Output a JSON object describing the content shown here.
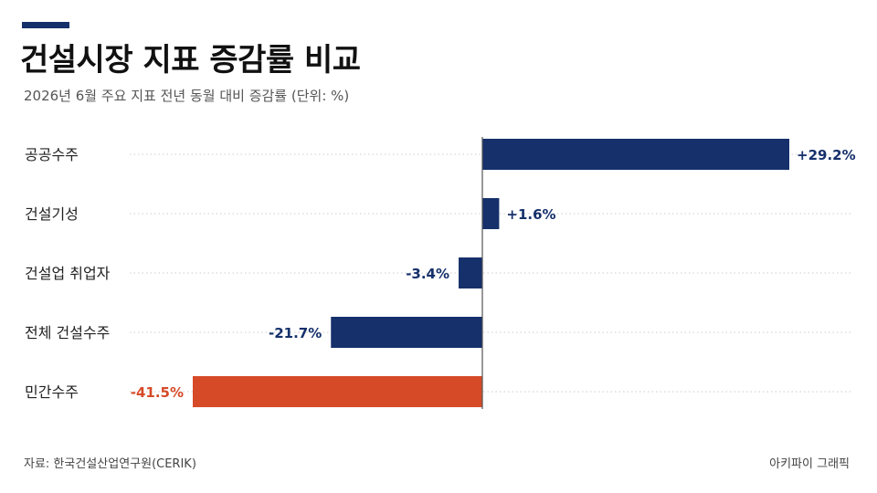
{
  "header": {
    "title": "건설시장 지표 증감률 비교",
    "subtitle": "2026년 6월 주요 지표 전년 동월 대비 증감률 (단위: %)"
  },
  "footer": {
    "source": "자료: 한국건설산업연구원(CERIK)",
    "credit": "아키파이 그래픽"
  },
  "colors": {
    "accent": "#15306b",
    "bar_default": "#15306b",
    "bar_highlight": "#d64a28",
    "label_default": "#15306b",
    "label_highlight": "#d64a28",
    "gridline": "#cccccc",
    "axis": "#555555"
  },
  "chart_data": {
    "type": "bar",
    "orientation": "horizontal",
    "categories": [
      "공공수주",
      "건설기성",
      "건설업 취업자",
      "전체 건설수주",
      "민간수주"
    ],
    "values": [
      29.2,
      1.6,
      -3.4,
      -21.7,
      -41.5
    ],
    "value_labels": [
      "+29.2%",
      "+1.6%",
      "-3.4%",
      "-21.7%",
      "-41.5%"
    ],
    "highlight": [
      false,
      false,
      false,
      false,
      true
    ],
    "unit": "%",
    "xlim": [
      -41.5,
      29.2
    ],
    "grid": "dotted horizontal"
  }
}
